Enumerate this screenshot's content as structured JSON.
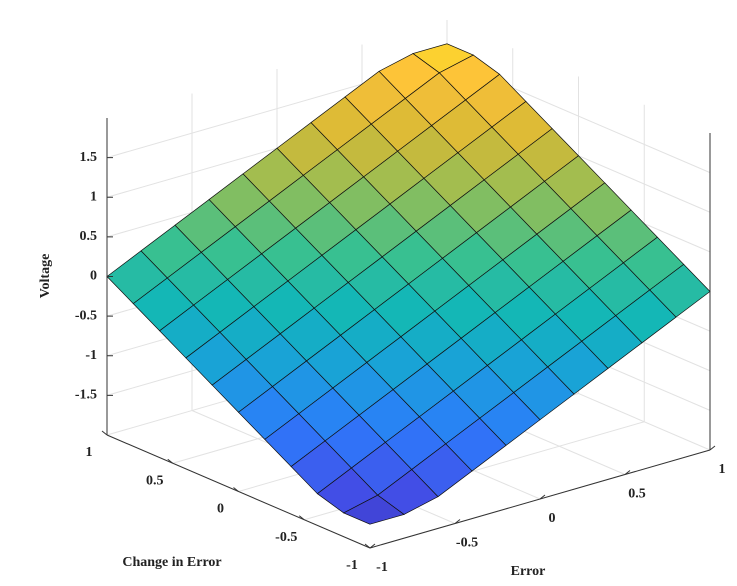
{
  "chart_data": {
    "type": "surface",
    "xlabel": "Error",
    "ylabel": "Change in Error",
    "zlabel": "Voltage",
    "x": [
      -1,
      -0.8,
      -0.6,
      -0.4,
      -0.2,
      0,
      0.2,
      0.4,
      0.6,
      0.8,
      1
    ],
    "y": [
      -1,
      -0.8,
      -0.6,
      -0.4,
      -0.2,
      0,
      0.2,
      0.4,
      0.6,
      0.8,
      1
    ],
    "z": [
      [
        -1.7,
        -1.7,
        -1.6,
        -1.4,
        -1.2,
        -1.0,
        -0.8,
        -0.6,
        -0.4,
        -0.2,
        0
      ],
      [
        -1.7,
        -1.6,
        -1.4,
        -1.2,
        -1.0,
        -0.8,
        -0.6,
        -0.4,
        -0.2,
        0,
        0.2
      ],
      [
        -1.6,
        -1.4,
        -1.2,
        -1.0,
        -0.8,
        -0.6,
        -0.4,
        -0.2,
        0,
        0.2,
        0.4
      ],
      [
        -1.4,
        -1.2,
        -1.0,
        -0.8,
        -0.6,
        -0.4,
        -0.2,
        0,
        0.2,
        0.4,
        0.6
      ],
      [
        -1.2,
        -1.0,
        -0.8,
        -0.6,
        -0.4,
        -0.2,
        0,
        0.2,
        0.4,
        0.6,
        0.8
      ],
      [
        -1.0,
        -0.8,
        -0.6,
        -0.4,
        -0.2,
        0,
        0.2,
        0.4,
        0.6,
        0.8,
        1.0
      ],
      [
        -0.8,
        -0.6,
        -0.4,
        -0.2,
        0,
        0.2,
        0.4,
        0.6,
        0.8,
        1.0,
        1.2
      ],
      [
        -0.6,
        -0.4,
        -0.2,
        0,
        0.2,
        0.4,
        0.6,
        0.8,
        1.0,
        1.2,
        1.4
      ],
      [
        -0.4,
        -0.2,
        0,
        0.2,
        0.4,
        0.6,
        0.8,
        1.0,
        1.2,
        1.4,
        1.6
      ],
      [
        -0.2,
        0,
        0.2,
        0.4,
        0.6,
        0.8,
        1.0,
        1.2,
        1.4,
        1.6,
        1.7
      ],
      [
        0,
        0.2,
        0.4,
        0.6,
        0.8,
        1.0,
        1.2,
        1.4,
        1.6,
        1.7,
        1.7
      ]
    ],
    "xlim": [
      -1,
      1
    ],
    "ylim": [
      -1,
      1
    ],
    "zlim": [
      -2,
      2
    ],
    "xticks": [
      -1,
      -0.5,
      0,
      0.5,
      1
    ],
    "yticks": [
      -1,
      -0.5,
      0,
      0.5,
      1
    ],
    "zticks": [
      -1.5,
      -1,
      -0.5,
      0,
      0.5,
      1,
      1.5
    ],
    "grid": true,
    "colormap": [
      "#3e26a8",
      "#4250e9",
      "#2d7bfb",
      "#1aa0db",
      "#12b6b8",
      "#3ac08f",
      "#8dbe5a",
      "#d6b935",
      "#fdc13a",
      "#f9fb15"
    ]
  }
}
